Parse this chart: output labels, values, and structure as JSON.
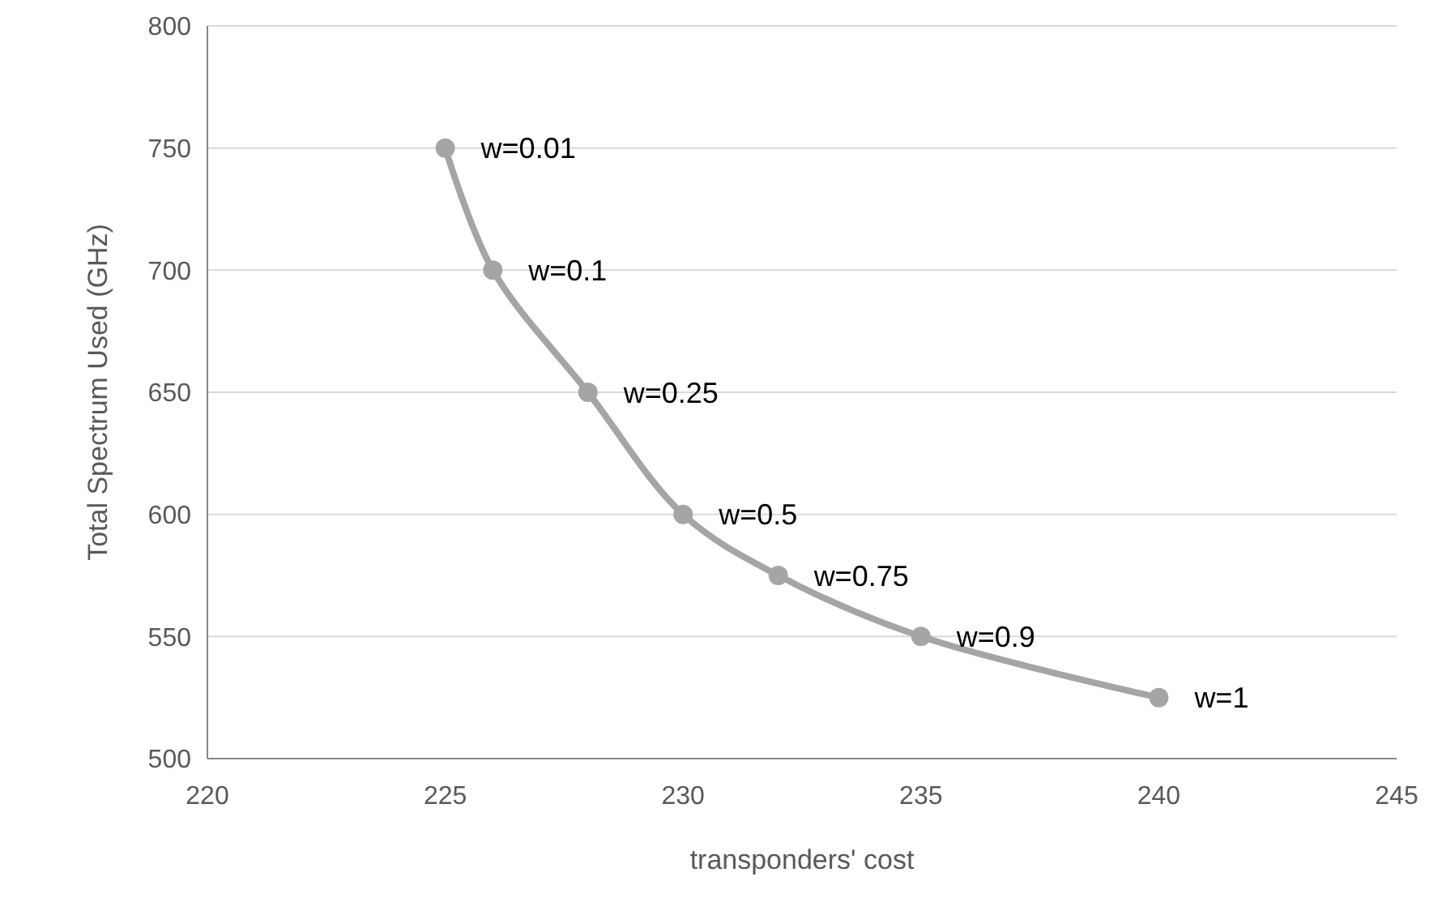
{
  "chart_data": {
    "type": "line",
    "xlabel": "transponders' cost",
    "ylabel": "Total Spectrum Used (GHz)",
    "x": [
      225,
      226,
      228,
      230,
      232,
      235,
      240
    ],
    "series": [
      {
        "color": "#a5a5a5",
        "values": [
          750,
          700,
          650,
          600,
          575,
          550,
          525
        ]
      }
    ],
    "xlim": [
      220,
      245
    ],
    "xticks": [
      220,
      225,
      230,
      235,
      240,
      245
    ],
    "ylim": [
      500,
      800
    ],
    "yticks": [
      500,
      550,
      600,
      650,
      700,
      750,
      800
    ],
    "grid": "y",
    "marker": "circle",
    "line_style": "solid",
    "annotations": [
      {
        "text": "w=0.01",
        "x": 225,
        "y": 750
      },
      {
        "text": "w=0.1",
        "x": 226,
        "y": 700
      },
      {
        "text": "w=0.25",
        "x": 228,
        "y": 650
      },
      {
        "text": "w=0.5",
        "x": 230,
        "y": 600
      },
      {
        "text": "w=0.75",
        "x": 232,
        "y": 575
      },
      {
        "text": "w=0.9",
        "x": 235,
        "y": 550
      },
      {
        "text": "w=1",
        "x": 240,
        "y": 525
      }
    ]
  }
}
